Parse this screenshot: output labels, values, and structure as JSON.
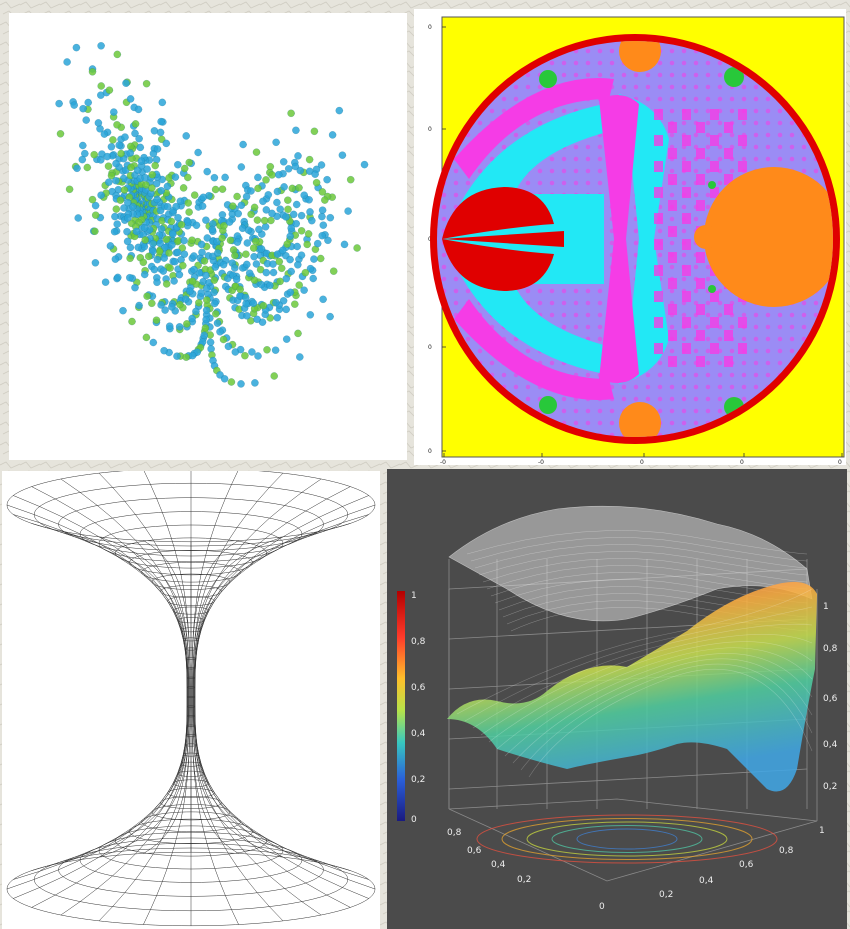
{
  "colors": {
    "page_background": "#e6e4dc",
    "lorenz_blue": "#2aa5d8",
    "lorenz_green": "#6cc83a",
    "fractal_background": "#ffff00",
    "fractal_disk": "#9b8cf5",
    "fractal_ring": "#e00000",
    "fractal_cyan": "#22e8f5",
    "fractal_magenta": "#f53ce6",
    "fractal_orange": "#ff8a1a",
    "fractal_green": "#28c83a",
    "surface_background": "#4b4b4b"
  },
  "panels": [
    {
      "id": "lorenz",
      "content": "lorenz-attractor"
    },
    {
      "id": "fractal",
      "content": "circle-inversion-fractal"
    },
    {
      "id": "wormhole",
      "content": "hyperboloid-wireframe"
    },
    {
      "id": "surface",
      "content": "3d-surface-plot"
    }
  ],
  "fractal": {
    "y_ticks": [
      "0",
      "0",
      "0",
      "0",
      "0"
    ],
    "x_ticks": [
      "-0",
      "-0",
      "0",
      "0",
      "0"
    ]
  },
  "surface": {
    "colorbar_ticks": [
      "1",
      "0,8",
      "0,6",
      "0,4",
      "0,2",
      "0"
    ],
    "right_z_ticks": [
      "1",
      "0,8",
      "0,6",
      "0,4",
      "0,2"
    ],
    "left_axis_ticks": [
      "0,8",
      "0,6",
      "0,4",
      "0,2",
      "0"
    ],
    "right_axis_ticks": [
      "1",
      "0,8",
      "0,6",
      "0,4",
      "0,2"
    ]
  }
}
